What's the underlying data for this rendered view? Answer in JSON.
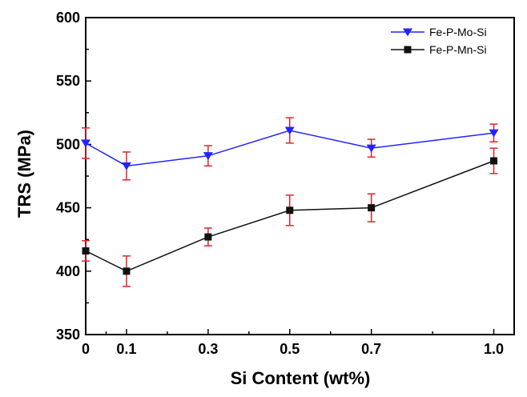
{
  "chart_data": {
    "type": "line",
    "title": "",
    "xlabel": "Si Content (wt%)",
    "ylabel": "TRS (MPa)",
    "x": [
      0,
      0.1,
      0.3,
      0.5,
      0.7,
      1.0
    ],
    "x_tick_labels": [
      "0",
      "0.1",
      "0.3",
      "0.5",
      "0.7",
      "1.0"
    ],
    "xlim": [
      0,
      1.05
    ],
    "ylim": [
      350,
      600
    ],
    "y_ticks": [
      350,
      400,
      450,
      500,
      550,
      600
    ],
    "grid": false,
    "legend_position": "top-right",
    "error_bar_color": "#e8202a",
    "series": [
      {
        "name": "Fe-P-Mo-Si",
        "color": "#2323ff",
        "marker": "triangle-down",
        "values": [
          501,
          483,
          491,
          511,
          497,
          509
        ],
        "errors": [
          12,
          11,
          8,
          10,
          7,
          7
        ]
      },
      {
        "name": "Fe-P-Mn-Si",
        "color": "#111111",
        "marker": "square",
        "values": [
          416,
          400,
          427,
          448,
          450,
          487
        ],
        "errors": [
          8,
          12,
          7,
          12,
          11,
          10
        ]
      }
    ]
  }
}
